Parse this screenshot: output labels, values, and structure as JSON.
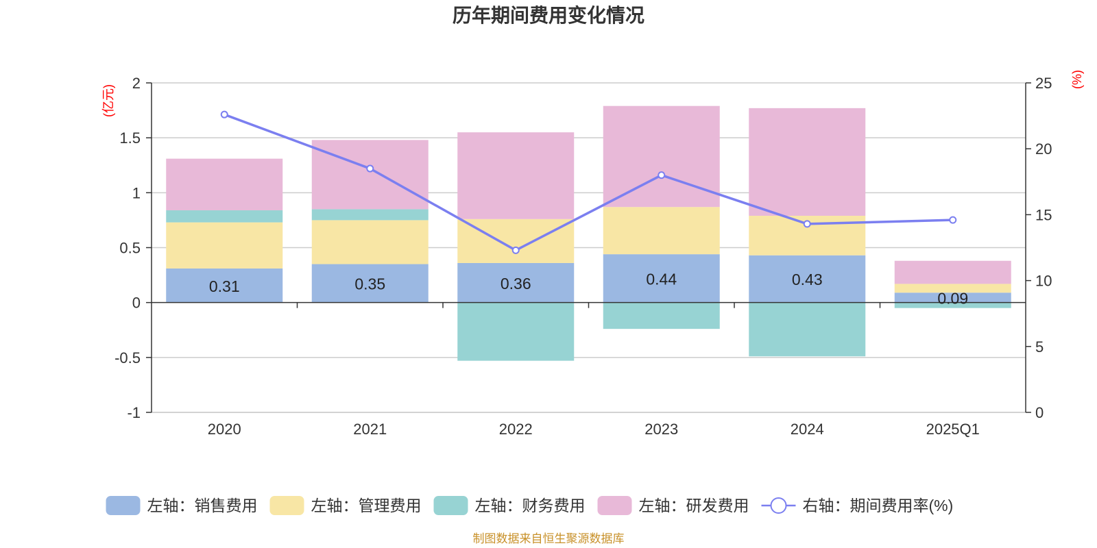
{
  "chart_data": {
    "type": "bar",
    "title": "历年期间费用变化情况",
    "categories": [
      "2020",
      "2021",
      "2022",
      "2023",
      "2024",
      "2025Q1"
    ],
    "left_axis": {
      "unit": "(亿元)",
      "ylim": [
        -1,
        2
      ],
      "ticks": [
        "2",
        "1.5",
        "1",
        "0.5",
        "0",
        "-0.5",
        "-1"
      ]
    },
    "right_axis": {
      "unit": "(%)",
      "ylim": [
        0,
        25
      ],
      "ticks": [
        "25",
        "20",
        "15",
        "10",
        "5",
        "0"
      ]
    },
    "series": [
      {
        "name": "左轴：销售费用",
        "axis": "left",
        "type": "bar",
        "color": "#9bb8e2",
        "values": [
          0.31,
          0.35,
          0.36,
          0.44,
          0.43,
          0.09
        ],
        "labels": [
          "0.31",
          "0.35",
          "0.36",
          "0.44",
          "0.43",
          "0.09"
        ]
      },
      {
        "name": "左轴：管理费用",
        "axis": "left",
        "type": "bar",
        "color": "#f8e6a5",
        "values": [
          0.42,
          0.4,
          0.4,
          0.43,
          0.36,
          0.08
        ]
      },
      {
        "name": "左轴：财务费用",
        "axis": "left",
        "type": "bar",
        "color": "#97d3d3",
        "values": [
          0.11,
          0.1,
          -0.53,
          -0.24,
          -0.49,
          -0.05
        ]
      },
      {
        "name": "左轴：研发费用",
        "axis": "left",
        "type": "bar",
        "color": "#e8b9d8",
        "values": [
          0.47,
          0.63,
          0.79,
          0.92,
          0.98,
          0.21
        ]
      },
      {
        "name": "右轴：期间费用率(%)",
        "axis": "right",
        "type": "line",
        "color": "#7b7ff0",
        "values": [
          22.6,
          18.5,
          12.3,
          18.0,
          14.3,
          14.6
        ]
      }
    ],
    "grid": true,
    "legend_position": "bottom"
  },
  "footer": {
    "source": "制图数据来自恒生聚源数据库"
  }
}
